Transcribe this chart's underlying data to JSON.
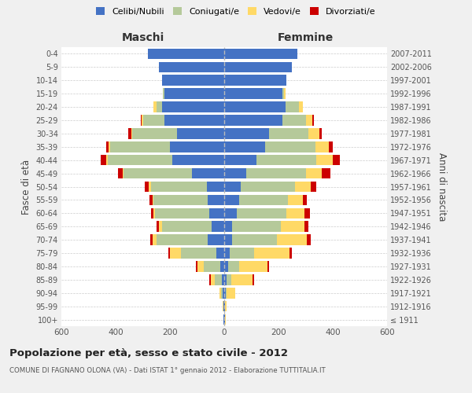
{
  "age_groups": [
    "100+",
    "95-99",
    "90-94",
    "85-89",
    "80-84",
    "75-79",
    "70-74",
    "65-69",
    "60-64",
    "55-59",
    "50-54",
    "45-49",
    "40-44",
    "35-39",
    "30-34",
    "25-29",
    "20-24",
    "15-19",
    "10-14",
    "5-9",
    "0-4"
  ],
  "birth_years": [
    "≤ 1911",
    "1912-1916",
    "1917-1921",
    "1922-1926",
    "1927-1931",
    "1932-1936",
    "1937-1941",
    "1942-1946",
    "1947-1951",
    "1952-1956",
    "1957-1961",
    "1962-1966",
    "1967-1971",
    "1972-1976",
    "1977-1981",
    "1982-1986",
    "1987-1991",
    "1992-1996",
    "1997-2001",
    "2002-2006",
    "2007-2011"
  ],
  "maschi": {
    "celibi": [
      2,
      2,
      5,
      10,
      15,
      30,
      60,
      45,
      55,
      60,
      65,
      120,
      190,
      200,
      175,
      220,
      230,
      220,
      230,
      240,
      280
    ],
    "coniugati": [
      1,
      2,
      8,
      25,
      60,
      130,
      190,
      185,
      200,
      200,
      205,
      250,
      240,
      220,
      165,
      80,
      20,
      5,
      0,
      0,
      0
    ],
    "vedovi": [
      0,
      1,
      3,
      15,
      25,
      40,
      15,
      10,
      5,
      5,
      8,
      5,
      5,
      5,
      3,
      3,
      10,
      0,
      0,
      0,
      0
    ],
    "divorziati": [
      0,
      0,
      0,
      5,
      5,
      5,
      8,
      10,
      10,
      10,
      15,
      15,
      20,
      10,
      10,
      5,
      0,
      0,
      0,
      0,
      0
    ]
  },
  "femmine": {
    "nubili": [
      2,
      2,
      5,
      10,
      15,
      20,
      30,
      30,
      45,
      55,
      60,
      80,
      120,
      150,
      165,
      215,
      225,
      215,
      230,
      250,
      270
    ],
    "coniugate": [
      1,
      1,
      5,
      15,
      40,
      90,
      165,
      180,
      185,
      180,
      200,
      220,
      220,
      185,
      145,
      85,
      50,
      5,
      0,
      0,
      0
    ],
    "vedove": [
      2,
      5,
      30,
      80,
      105,
      130,
      110,
      85,
      65,
      55,
      60,
      60,
      60,
      50,
      40,
      25,
      15,
      5,
      0,
      0,
      0
    ],
    "divorziate": [
      0,
      0,
      0,
      5,
      5,
      10,
      15,
      15,
      20,
      15,
      20,
      30,
      25,
      15,
      10,
      5,
      0,
      0,
      0,
      0,
      0
    ]
  },
  "colors": {
    "celibi": "#4472C4",
    "coniugati": "#B5C99A",
    "vedovi": "#FFD966",
    "divorziati": "#CC0000"
  },
  "xlim": 600,
  "title": "Popolazione per età, sesso e stato civile - 2012",
  "subtitle": "COMUNE DI FAGNANO OLONA (VA) - Dati ISTAT 1° gennaio 2012 - Elaborazione TUTTITALIA.IT",
  "ylabel_left": "Fasce di età",
  "ylabel_right": "Anni di nascita",
  "xlabel_maschi": "Maschi",
  "xlabel_femmine": "Femmine",
  "bg_color": "#f0f0f0",
  "plot_bg_color": "#ffffff"
}
